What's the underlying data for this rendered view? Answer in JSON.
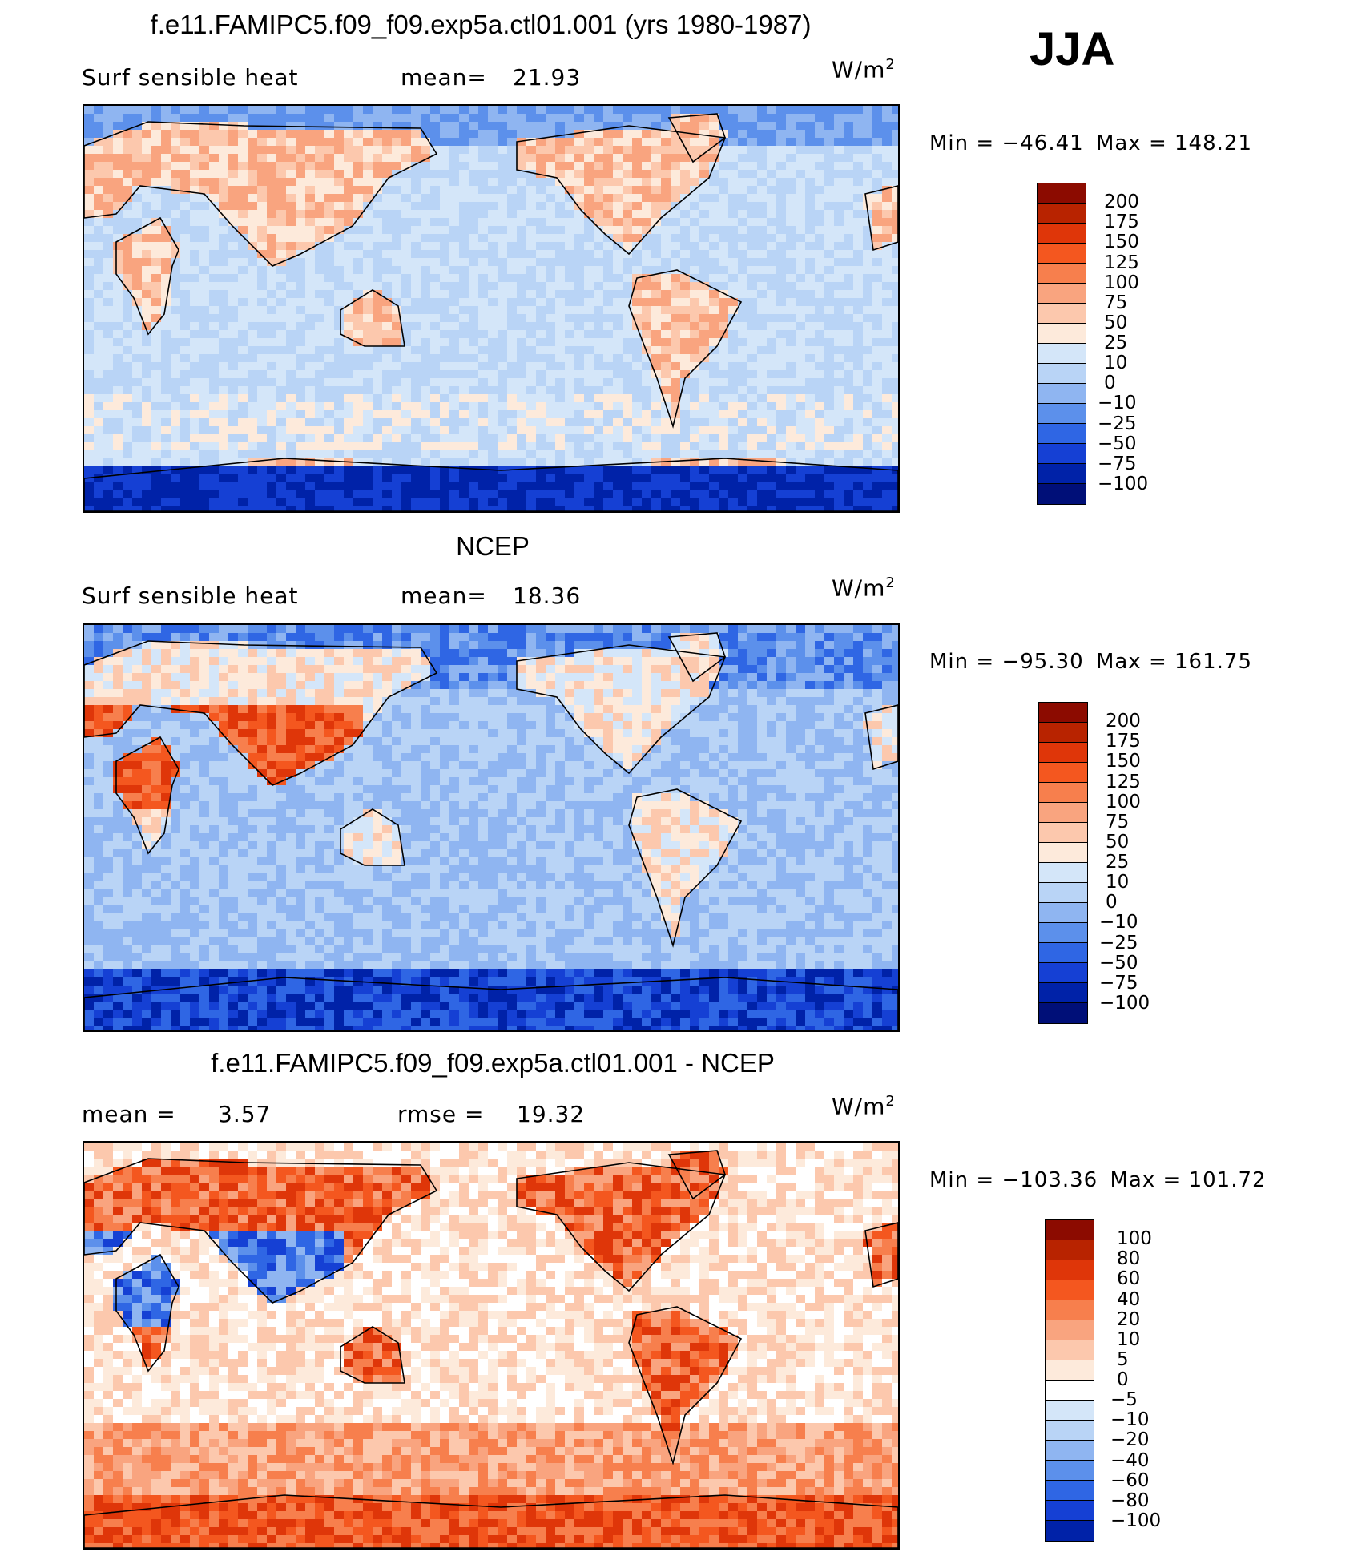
{
  "season": "JJA",
  "units_base": "W/m",
  "units_exp": "2",
  "chart_data": [
    {
      "type": "heatmap",
      "title": "f.e11.FAMIPC5.f09_f09.exp5a.ctl01.001 (yrs 1980-1987)",
      "variable": "Surf  sensible  heat",
      "stat_label": "mean=",
      "stat_value": "21.93",
      "stat2_label": "",
      "stat2_value": "",
      "min_label": "Min  =",
      "min_value": "−46.41",
      "max_label": "Max  =",
      "max_value": "148.21",
      "colorbar_levels": [
        "200",
        "175",
        "150",
        "125",
        "100",
        "75",
        "50",
        "25",
        "10",
        "0",
        "−10",
        "−25",
        "−50",
        "−75",
        "−100"
      ],
      "colorbar_colors": [
        "#8c0b00",
        "#b82300",
        "#df3609",
        "#f4571f",
        "#f77f4d",
        "#f9a47f",
        "#fcc8ad",
        "#fdeadb",
        "#d4e6f9",
        "#b9d4f6",
        "#8fb5f1",
        "#5c90eb",
        "#2f66e4",
        "#1540d4",
        "#0022a8",
        "#000f78"
      ],
      "pattern": "model"
    },
    {
      "type": "heatmap",
      "title": "NCEP",
      "variable": "Surf  sensible  heat",
      "stat_label": "mean=",
      "stat_value": "18.36",
      "stat2_label": "",
      "stat2_value": "",
      "min_label": "Min  =",
      "min_value": "−95.30",
      "max_label": "Max  =",
      "max_value": "161.75",
      "colorbar_levels": [
        "200",
        "175",
        "150",
        "125",
        "100",
        "75",
        "50",
        "25",
        "10",
        "0",
        "−10",
        "−25",
        "−50",
        "−75",
        "−100"
      ],
      "colorbar_colors": [
        "#8c0b00",
        "#b82300",
        "#df3609",
        "#f4571f",
        "#f77f4d",
        "#f9a47f",
        "#fcc8ad",
        "#fdeadb",
        "#d4e6f9",
        "#b9d4f6",
        "#8fb5f1",
        "#5c90eb",
        "#2f66e4",
        "#1540d4",
        "#0022a8",
        "#000f78"
      ],
      "pattern": "obs"
    },
    {
      "type": "heatmap",
      "title": "f.e11.FAMIPC5.f09_f09.exp5a.ctl01.001 - NCEP",
      "variable": "mean  =",
      "stat_label": "",
      "stat_value": "3.57",
      "stat2_label": "rmse  =",
      "stat2_value": "19.32",
      "min_label": "Min  =",
      "min_value": "−103.36",
      "max_label": "Max  =",
      "max_value": "101.72",
      "colorbar_levels": [
        "100",
        "80",
        "60",
        "40",
        "20",
        "10",
        "5",
        "0",
        "−5",
        "−10",
        "−20",
        "−40",
        "−60",
        "−80",
        "−100"
      ],
      "colorbar_colors": [
        "#8c0b00",
        "#b82300",
        "#df3609",
        "#f4571f",
        "#f77f4d",
        "#f9a47f",
        "#fcc8ad",
        "#fdeadb",
        "#ffffff",
        "#d4e6f9",
        "#b9d4f6",
        "#8fb5f1",
        "#5c90eb",
        "#2f66e4",
        "#1540d4",
        "#0022a8"
      ],
      "pattern": "diff"
    }
  ]
}
